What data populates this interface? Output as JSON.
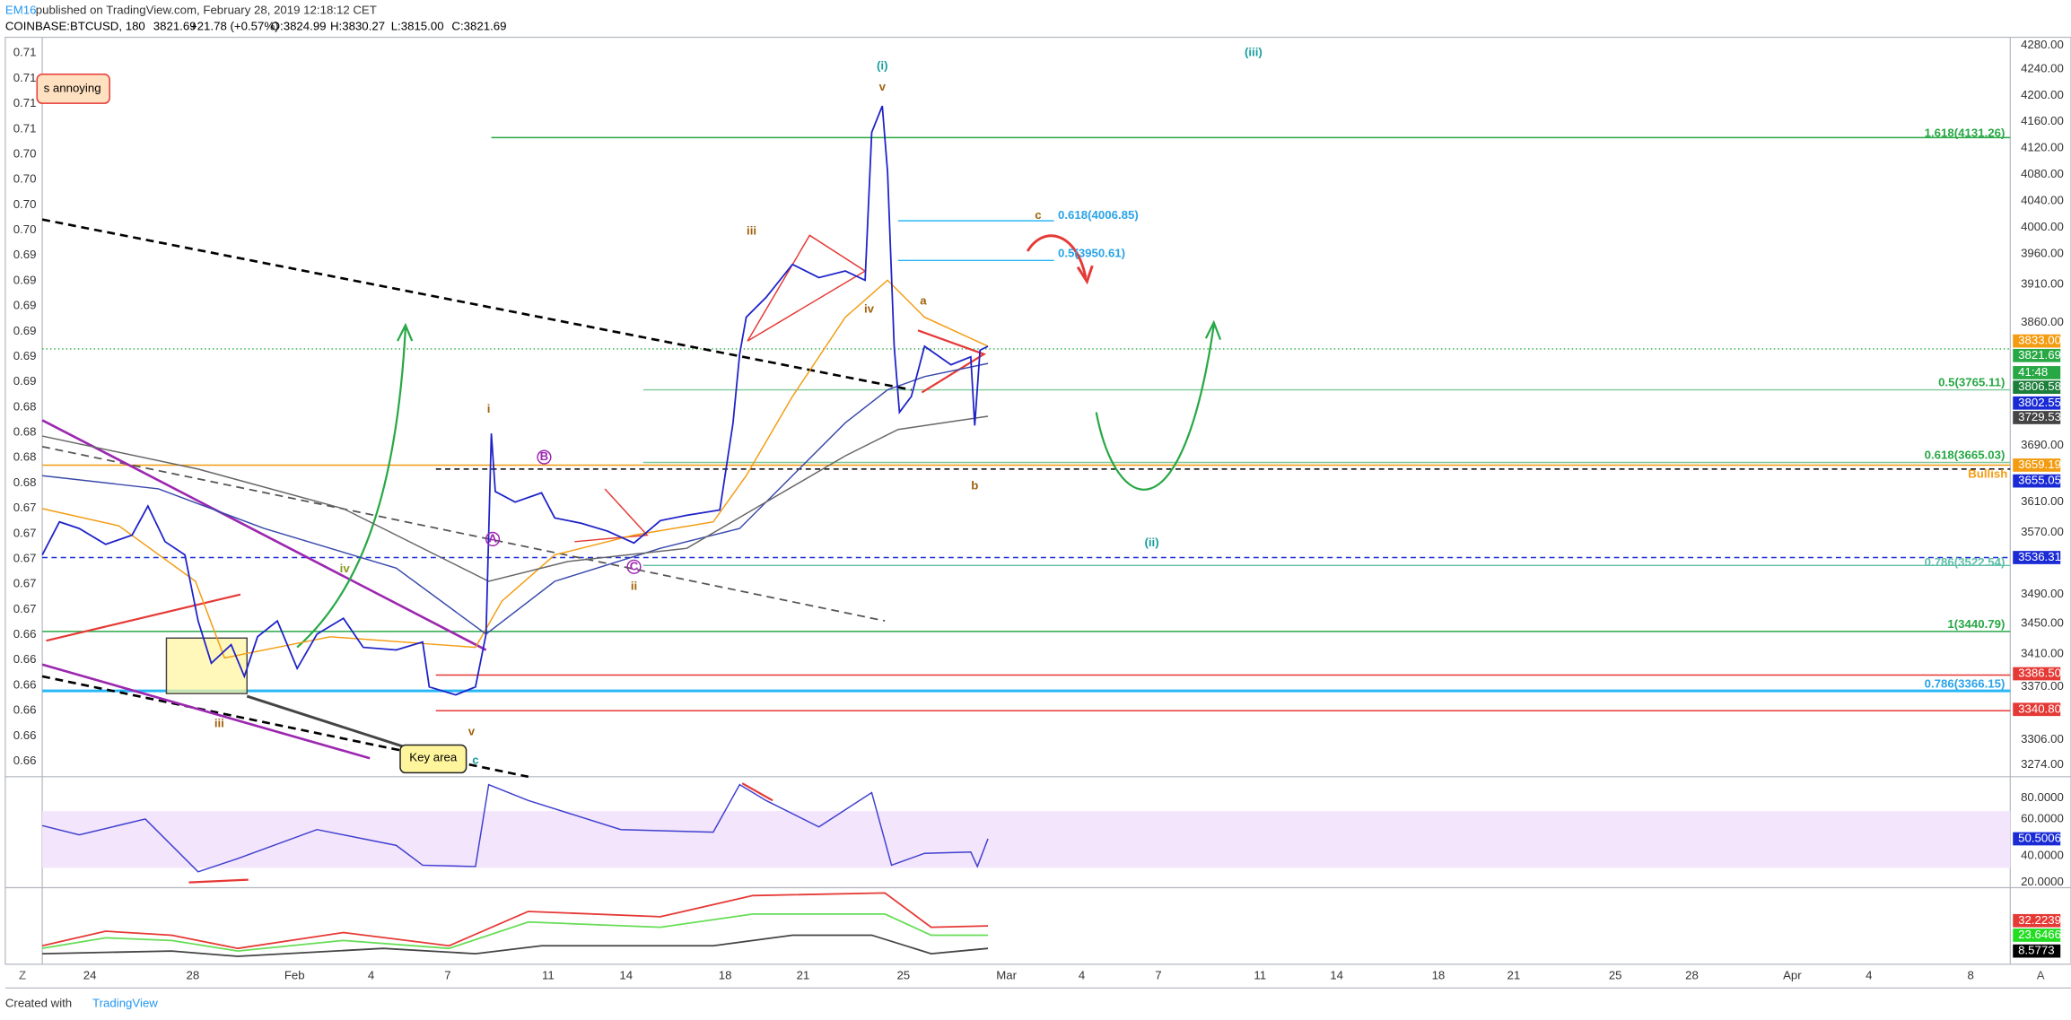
{
  "header": {
    "author": "EM16",
    "published": "published on TradingView.com, February 28, 2019 12:18:12 CET",
    "symbol": "COINBASE:BTCUSD, 180",
    "last": "3821.69",
    "change": "+21.78 (+0.57%)",
    "open": "O:3824.99",
    "high": "H:3830.27",
    "low": "L:3815.00",
    "close": "C:3821.69"
  },
  "left_axis": [
    "0.71",
    "0.71",
    "0.71",
    "0.71",
    "0.70",
    "0.70",
    "0.70",
    "0.70",
    "0.69",
    "0.69",
    "0.69",
    "0.69",
    "0.69",
    "0.69",
    "0.68",
    "0.68",
    "0.68",
    "0.68",
    "0.67",
    "0.67",
    "0.67",
    "0.67",
    "0.67",
    "0.66",
    "0.66",
    "0.66",
    "0.66",
    "0.66",
    "0.66"
  ],
  "right_axis": [
    "4280.00",
    "4240.00",
    "4200.00",
    "4160.00",
    "4120.00",
    "4080.00",
    "4040.00",
    "4000.00",
    "3960.00",
    "3910.00",
    "3860.00",
    "3690.00",
    "3610.00",
    "3570.00",
    "3490.00",
    "3450.00",
    "3410.00",
    "3370.00",
    "3306.00",
    "3274.00"
  ],
  "price_tags": [
    "3833.00",
    "3821.69",
    "41:48",
    "3806.58",
    "3802.55",
    "3729.53",
    "3659.19",
    "3655.05",
    "3536.31",
    "3386.50",
    "3340.80"
  ],
  "rsi_axis": [
    "80.0000",
    "60.0000",
    "40.0000",
    "20.0000"
  ],
  "rsi_tag": "50.5006",
  "adx_tags": [
    "32.2239",
    "23.6466",
    "8.5773"
  ],
  "time_axis": [
    "24",
    "28",
    "Feb",
    "4",
    "7",
    "11",
    "14",
    "18",
    "21",
    "25",
    "Mar",
    "4",
    "7",
    "11",
    "14",
    "18",
    "21",
    "25",
    "28",
    "Apr",
    "4",
    "8"
  ],
  "axis_buttons": [
    "Z",
    "A"
  ],
  "annotations": [
    "(i)",
    "v",
    "(iii)",
    "1.618(4131.26)",
    "c",
    "0.618(4006.85)",
    "0.5(3950.61)",
    "iii",
    "iv",
    "a",
    "0.5(3765.11)",
    "i",
    "B",
    "0.618(3665.03)",
    "Bullish",
    "b",
    "A",
    "(ii)",
    "0.786(3522.54)",
    "C",
    "ii",
    "iv",
    "1(3440.79)",
    "0.786(3366.15)",
    "v",
    "iii",
    "c"
  ],
  "notes": [
    "s annoying",
    "Key area"
  ],
  "footer": {
    "created": "Created with",
    "brand": "TradingView"
  }
}
